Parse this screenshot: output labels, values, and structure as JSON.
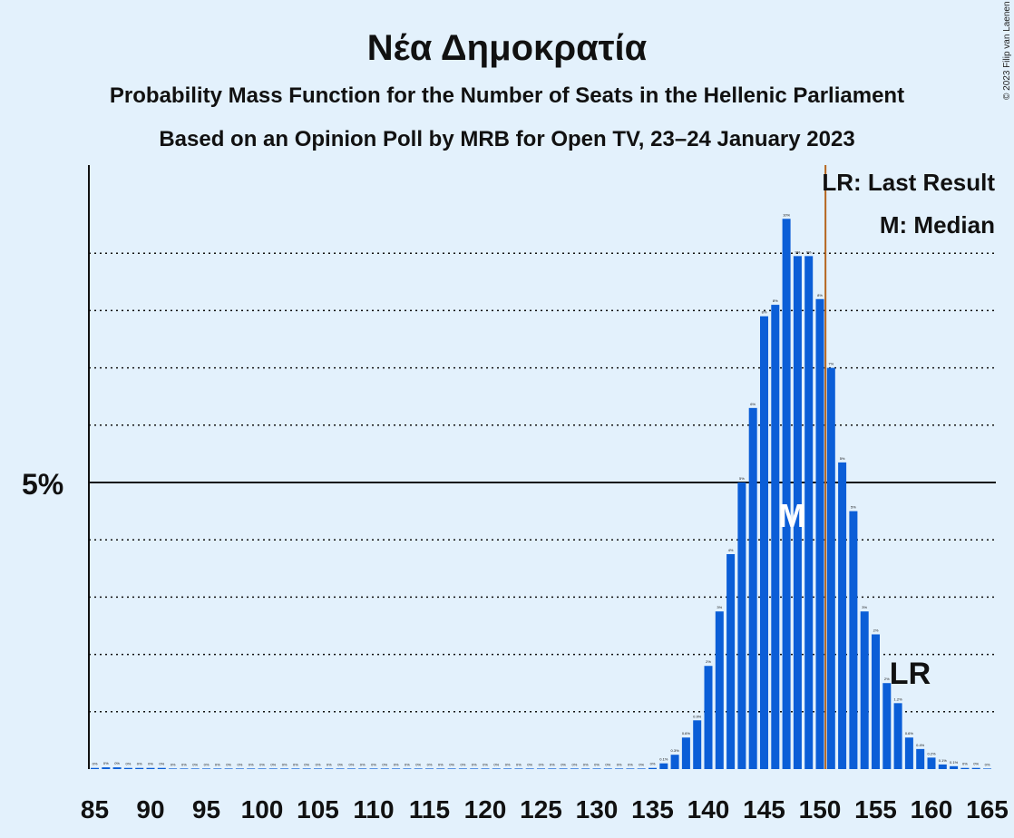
{
  "chart_data": {
    "type": "bar",
    "title": "Νέα Δημοκρατία",
    "subtitle1": "Probability Mass Function for the Number of Seats in the Hellenic Parliament",
    "subtitle2": "Based on an Opinion Poll by MRB for Open TV, 23–24 January 2023",
    "copyright": "© 2023 Filip van Laenen",
    "x_start": 85,
    "x_tick_labels": [
      "85",
      "90",
      "95",
      "100",
      "105",
      "110",
      "115",
      "120",
      "125",
      "130",
      "135",
      "140",
      "145",
      "150",
      "155",
      "160",
      "165"
    ],
    "values": [
      0.02,
      0.03,
      0.03,
      0.02,
      0.02,
      0.02,
      0.02,
      0.01,
      0.01,
      0.01,
      0.01,
      0.01,
      0.01,
      0.01,
      0.01,
      0.01,
      0.01,
      0.01,
      0.01,
      0.01,
      0.01,
      0.01,
      0.01,
      0.01,
      0.01,
      0.01,
      0.01,
      0.01,
      0.01,
      0.01,
      0.01,
      0.01,
      0.01,
      0.01,
      0.01,
      0.01,
      0.01,
      0.01,
      0.01,
      0.01,
      0.01,
      0.01,
      0.01,
      0.01,
      0.01,
      0.01,
      0.01,
      0.01,
      0.01,
      0.01,
      0.02,
      0.1,
      0.25,
      0.55,
      0.85,
      1.8,
      2.75,
      3.75,
      5.0,
      6.3,
      7.9,
      8.1,
      9.6,
      8.95,
      8.95,
      8.2,
      7.0,
      5.35,
      4.5,
      2.75,
      2.35,
      1.5,
      1.15,
      0.55,
      0.35,
      0.2,
      0.08,
      0.05,
      0.02,
      0.02,
      0.01
    ],
    "data_labels": [
      "0%",
      "0%",
      "0%",
      "0%",
      "0%",
      "0%",
      "0%",
      "0%",
      "0%",
      "0%",
      "0%",
      "0%",
      "0%",
      "0%",
      "0%",
      "0%",
      "0%",
      "0%",
      "0%",
      "0%",
      "0%",
      "0%",
      "0%",
      "0%",
      "0%",
      "0%",
      "0%",
      "0%",
      "0%",
      "0%",
      "0%",
      "0%",
      "0%",
      "0%",
      "0%",
      "0%",
      "0%",
      "0%",
      "0%",
      "0%",
      "0%",
      "0%",
      "0%",
      "0%",
      "0%",
      "0%",
      "0%",
      "0%",
      "0%",
      "0%",
      "0%",
      "0.1%",
      "0.3%",
      "0.6%",
      "0.9%",
      "2%",
      "3%",
      "4%",
      "5%",
      "6%",
      "8%",
      "8%",
      "10%",
      "9%",
      "9%",
      "8%",
      "7%",
      "5%",
      "5%",
      "3%",
      "2%",
      "2%",
      "1.2%",
      "0.6%",
      "0.4%",
      "0.2%",
      "0.1%",
      "0.1%",
      "0%",
      "0%",
      "0%"
    ],
    "y_tick_label": "5%",
    "y_major": 5,
    "y_gridlines": [
      1,
      2,
      3,
      4,
      6,
      7,
      8,
      9
    ],
    "ylim": [
      0,
      10.5
    ],
    "last_result_seat": 151,
    "median_seat": 148,
    "median_label": "M",
    "last_result_label": "LR",
    "legend": [
      "LR: Last Result",
      "M: Median"
    ],
    "legend_position": "top-right",
    "colors": {
      "bar": "#0b5ed7",
      "last_result_line": "#b5651d",
      "background": "#e3f1fc"
    }
  }
}
